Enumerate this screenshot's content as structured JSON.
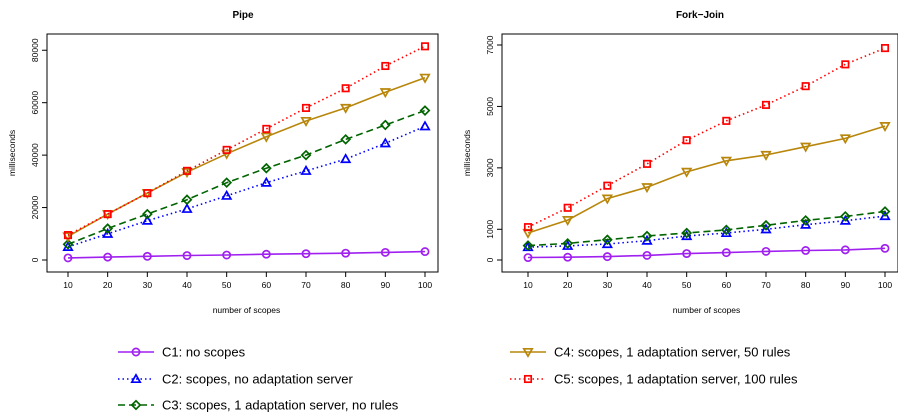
{
  "chart_data": [
    {
      "type": "line",
      "title": "Pipe",
      "xlabel": "number of scopes",
      "ylabel": "milliseconds",
      "x": [
        10,
        20,
        30,
        40,
        50,
        60,
        70,
        80,
        90,
        100
      ],
      "xlim": [
        10,
        100
      ],
      "ylim": [
        0,
        82000
      ],
      "yticks": [
        0,
        20000,
        40000,
        60000,
        80000
      ],
      "grid": false,
      "series": [
        {
          "key": "C1",
          "values": [
            800,
            1100,
            1400,
            1700,
            1900,
            2200,
            2400,
            2600,
            2900,
            3200
          ]
        },
        {
          "key": "C2",
          "values": [
            5000,
            10000,
            15000,
            19500,
            24500,
            29500,
            34000,
            38500,
            44500,
            51000
          ]
        },
        {
          "key": "C3",
          "values": [
            6000,
            12000,
            17500,
            23000,
            29500,
            35000,
            40000,
            46000,
            51500,
            57000
          ]
        },
        {
          "key": "C4",
          "values": [
            9000,
            17500,
            25500,
            33500,
            40500,
            47000,
            53000,
            58000,
            64000,
            69500
          ]
        },
        {
          "key": "C5",
          "values": [
            9500,
            17500,
            25500,
            34000,
            42000,
            50000,
            58000,
            65500,
            74000,
            81500
          ]
        }
      ]
    },
    {
      "type": "line",
      "title": "Fork−Join",
      "xlabel": "number of scopes",
      "ylabel": "milliseconds",
      "x": [
        10,
        20,
        30,
        40,
        50,
        60,
        70,
        80,
        90,
        100
      ],
      "xlim": [
        10,
        100
      ],
      "ylim": [
        0,
        7000
      ],
      "yticks": [
        0,
        1000,
        3000,
        5000,
        7000
      ],
      "grid": false,
      "series": [
        {
          "key": "C1",
          "values": [
            80,
            90,
            110,
            150,
            210,
            240,
            280,
            310,
            330,
            380
          ]
        },
        {
          "key": "C2",
          "values": [
            420,
            460,
            520,
            630,
            780,
            880,
            1000,
            1150,
            1280,
            1430
          ]
        },
        {
          "key": "C3",
          "values": [
            470,
            540,
            660,
            780,
            880,
            980,
            1130,
            1290,
            1420,
            1580
          ]
        },
        {
          "key": "C4",
          "values": [
            880,
            1300,
            2000,
            2370,
            2870,
            3230,
            3420,
            3690,
            3960,
            4360
          ]
        },
        {
          "key": "C5",
          "values": [
            1070,
            1700,
            2420,
            3130,
            3900,
            4530,
            5050,
            5660,
            6370,
            6900
          ]
        }
      ]
    }
  ],
  "legend": {
    "placement": "bottom",
    "items": [
      {
        "key": "C1",
        "label": "C1: no scopes",
        "color": "#a020f0",
        "marker": "circle",
        "dash": "solid"
      },
      {
        "key": "C2",
        "label": "C2: scopes, no adaptation server",
        "color": "#0000ff",
        "marker": "triangle-up",
        "dash": "dotted"
      },
      {
        "key": "C3",
        "label": "C3: scopes, 1 adaptation server, no rules",
        "color": "#006400",
        "marker": "diamond",
        "dash": "dashed"
      },
      {
        "key": "C4",
        "label": "C4: scopes, 1 adaptation server, 50 rules",
        "color": "#b8860b",
        "marker": "triangle-down",
        "dash": "solid"
      },
      {
        "key": "C5",
        "label": "C5: scopes, 1 adaptation server, 100 rules",
        "color": "#ff0000",
        "marker": "square",
        "dash": "dotted"
      }
    ]
  }
}
